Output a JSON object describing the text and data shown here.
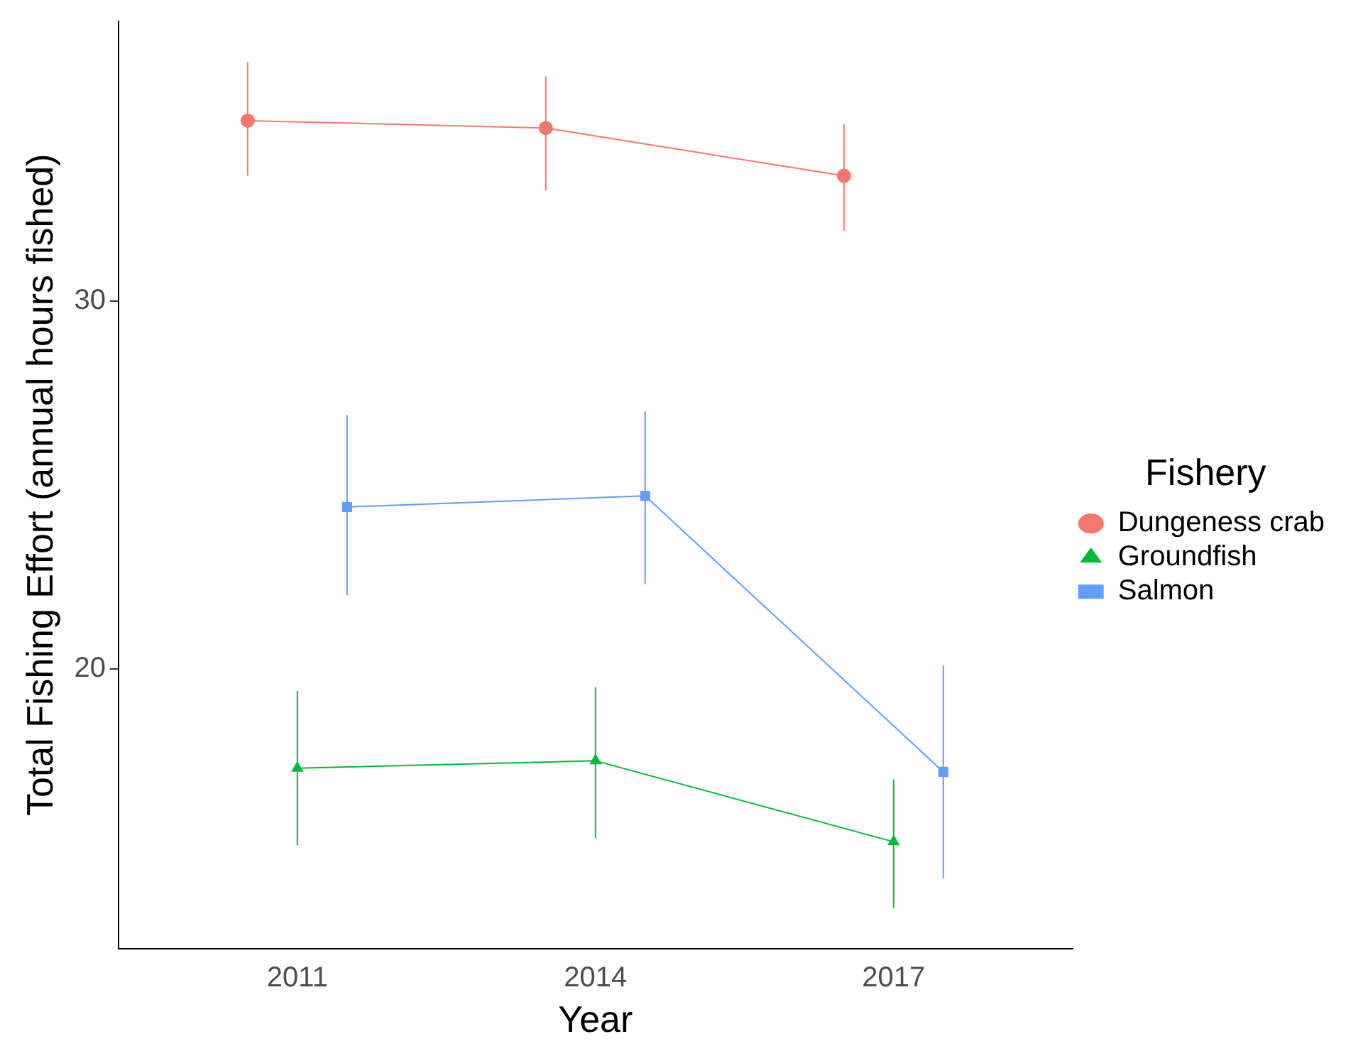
{
  "chart_data": {
    "type": "line",
    "xlabel": "Year",
    "ylabel": "Total Fishing Effort (annual hours fished)",
    "legend_title": "Fishery",
    "legend": "right",
    "grid": false,
    "xlim": [
      2009.2,
      2018.8
    ],
    "xticks": [
      {
        "value": 2011,
        "label": "2011"
      },
      {
        "value": 2014,
        "label": "2014"
      },
      {
        "value": 2017,
        "label": "2017"
      }
    ],
    "ylim": [
      12.4,
      37.6
    ],
    "yticks": [
      20,
      30
    ],
    "series": [
      {
        "name": "Dungeness crab",
        "color": "#f8766d",
        "marker": "circle",
        "x": [
          2010.5,
          2013.5,
          2016.5
        ],
        "values": [
          34.9,
          34.7,
          33.4
        ],
        "errors": [
          [
            33.4,
            36.5
          ],
          [
            33.0,
            36.1
          ],
          [
            31.9,
            34.8
          ]
        ]
      },
      {
        "name": "Groundfish",
        "color": "#00ba38",
        "marker": "triangle",
        "x": [
          2011,
          2014,
          2017
        ],
        "values": [
          17.3,
          17.5,
          15.3
        ],
        "errors": [
          [
            15.2,
            19.4
          ],
          [
            15.4,
            19.5
          ],
          [
            13.5,
            17.0
          ]
        ]
      },
      {
        "name": "Salmon",
        "color": "#619cff",
        "marker": "square",
        "x": [
          2011.5,
          2014.5,
          2017.5
        ],
        "values": [
          24.4,
          24.7,
          17.2
        ],
        "errors": [
          [
            22.0,
            26.9
          ],
          [
            22.3,
            27.0
          ],
          [
            14.3,
            20.1
          ]
        ]
      }
    ]
  }
}
